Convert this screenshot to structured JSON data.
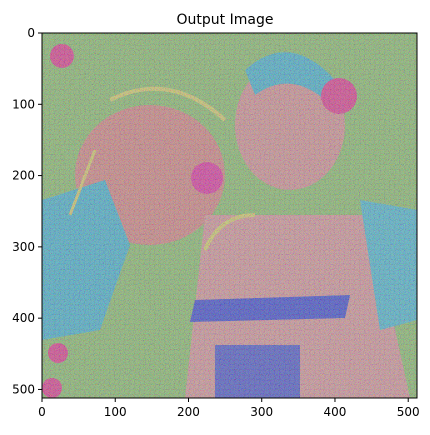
{
  "chart_data": {
    "type": "image",
    "title": "Output Image",
    "xlabel": "",
    "ylabel": "",
    "xlim": [
      0,
      512
    ],
    "ylim": [
      512,
      0
    ],
    "x_ticks": [
      0,
      100,
      200,
      300,
      400,
      500
    ],
    "y_ticks": [
      0,
      100,
      200,
      300,
      400,
      500
    ],
    "grid": false,
    "image_description_colors": {
      "background": "#ffffff",
      "axes": "#000000",
      "noise_green": "#7fdc6a",
      "noise_pink": "#f07a9a",
      "noise_cyan": "#2ec8f0",
      "jersey_blue": "#2a3cf0",
      "highlight_magenta": "#ff2aa0",
      "highlight_yellow": "#f4e86a"
    }
  }
}
